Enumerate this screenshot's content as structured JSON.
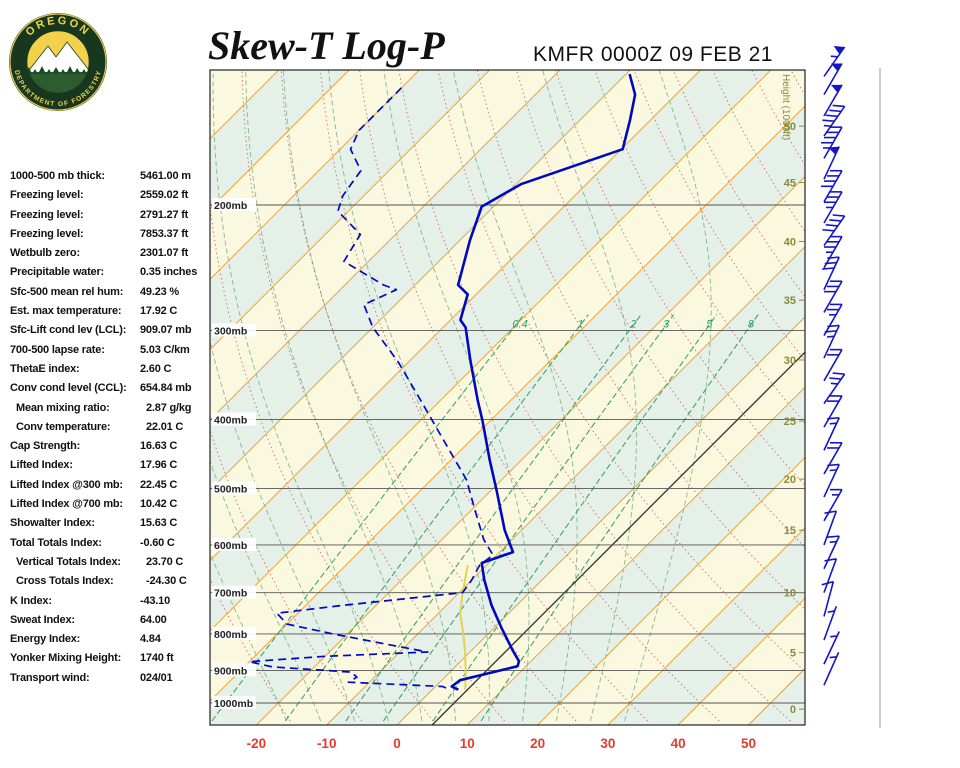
{
  "header": {
    "title": "Skew-T Log-P",
    "station_line": "KMFR 0000Z 09 FEB 21"
  },
  "logo": {
    "top_text": "OREGON",
    "bottom_text": "DEPARTMENT OF FORESTRY"
  },
  "colors": {
    "band_cream": "#FBF8E0",
    "band_mint": "#E5F0E9",
    "isotherm_orange": "#EDA338",
    "dry_red": "#C05050",
    "moist_green": "#6FAF80",
    "mixing_green": "#2E9E60",
    "profile_blue": "#0008C0",
    "parcel_yellow": "#E2D355",
    "barb_blue": "#1515C8",
    "height_olive": "#8A8A3C",
    "axis_red": "#E23B2E",
    "reference_black": "#333333",
    "pressure_line_gray": "#555555"
  },
  "stats": [
    {
      "label": "1000-500 mb thick:",
      "value": "5461.00 m",
      "indent": false
    },
    {
      "label": "Freezing level:",
      "value": "2559.02 ft",
      "indent": false
    },
    {
      "label": "Freezing level:",
      "value": "2791.27 ft",
      "indent": false
    },
    {
      "label": "Freezing level:",
      "value": "7853.37 ft",
      "indent": false
    },
    {
      "label": "Wetbulb zero:",
      "value": "2301.07 ft",
      "indent": false
    },
    {
      "label": "Precipitable water:",
      "value": "0.35 inches",
      "indent": false
    },
    {
      "label": "Sfc-500 mean rel hum:",
      "value": "49.23 %",
      "indent": false
    },
    {
      "label": "Est. max temperature:",
      "value": "17.92 C",
      "indent": false
    },
    {
      "label": "Sfc-Lift cond lev (LCL):",
      "value": "909.07 mb",
      "indent": false
    },
    {
      "label": "700-500 lapse rate:",
      "value": "5.03 C/km",
      "indent": false
    },
    {
      "label": "ThetaE index:",
      "value": "2.60 C",
      "indent": false
    },
    {
      "label": "Conv cond level (CCL):",
      "value": "654.84 mb",
      "indent": false
    },
    {
      "label": "Mean mixing ratio:",
      "value": "2.87 g/kg",
      "indent": true
    },
    {
      "label": "Conv temperature:",
      "value": "22.01 C",
      "indent": true
    },
    {
      "label": "Cap Strength:",
      "value": "16.63 C",
      "indent": false
    },
    {
      "label": "Lifted Index:",
      "value": "17.96 C",
      "indent": false
    },
    {
      "label": "Lifted Index @300 mb:",
      "value": "22.45 C",
      "indent": false
    },
    {
      "label": "Lifted Index @700 mb:",
      "value": "10.42 C",
      "indent": false
    },
    {
      "label": "Showalter Index:",
      "value": "15.63 C",
      "indent": false
    },
    {
      "label": "Total Totals Index:",
      "value": "-0.60 C",
      "indent": false
    },
    {
      "label": "Vertical Totals Index:",
      "value": "23.70 C",
      "indent": true
    },
    {
      "label": "Cross Totals Index:",
      "value": "-24.30 C",
      "indent": true
    },
    {
      "label": "K Index:",
      "value": "-43.10",
      "indent": false
    },
    {
      "label": "Sweat Index:",
      "value": "64.00",
      "indent": false
    },
    {
      "label": "Energy Index:",
      "value": "4.84",
      "indent": false
    },
    {
      "label": "Yonker Mixing Height:",
      "value": "1740 ft",
      "indent": false
    },
    {
      "label": "Transport wind:",
      "value": "024/01",
      "indent": false
    }
  ],
  "chart_data": {
    "type": "skewt-log-p",
    "title": "Skew-T Log-P",
    "station": "KMFR",
    "valid": "0000Z 09 FEB 21",
    "pressure_ticks_mb": [
      200,
      300,
      400,
      500,
      600,
      700,
      800,
      900,
      1000
    ],
    "temp_ticks_c": [
      -20,
      -10,
      0,
      10,
      20,
      30,
      40,
      50
    ],
    "isotherms_c": [
      -120,
      -110,
      -100,
      -90,
      -80,
      -70,
      -60,
      -50,
      -40,
      -30,
      -20,
      -10,
      0,
      10,
      20,
      30,
      40,
      50
    ],
    "reference_isotherm_c": 5,
    "dry_adiabats_c": [
      -20,
      -10,
      0,
      10,
      20,
      30,
      40,
      50,
      60,
      70,
      80,
      90,
      100,
      110,
      120,
      130,
      140,
      150,
      160
    ],
    "moist_adiabats_c": [
      -20,
      -15,
      -10,
      -5,
      0,
      5,
      10,
      15,
      20,
      25,
      30
    ],
    "mixing_ratio_lines_gkg": [
      0.4,
      1,
      2,
      3,
      5,
      8
    ],
    "height_axis_label": "Height (1000ft)",
    "height_labels_kft": [
      {
        "label": "50",
        "p": 155
      },
      {
        "label": "45",
        "p": 186
      },
      {
        "label": "40",
        "p": 225
      },
      {
        "label": "35",
        "p": 272
      },
      {
        "label": "30",
        "p": 330
      },
      {
        "label": "25",
        "p": 402
      },
      {
        "label": "20",
        "p": 485
      },
      {
        "label": "15",
        "p": 572
      },
      {
        "label": "10",
        "p": 700
      },
      {
        "label": "5",
        "p": 850
      },
      {
        "label": "0",
        "p": 1020
      }
    ],
    "temperature_profile": [
      {
        "p": 131,
        "t": -59.5
      },
      {
        "p": 140,
        "t": -55.8
      },
      {
        "p": 152,
        "t": -52.9
      },
      {
        "p": 167,
        "t": -49.8
      },
      {
        "p": 187,
        "t": -59.3
      },
      {
        "p": 201,
        "t": -61.7
      },
      {
        "p": 224,
        "t": -58.6
      },
      {
        "p": 259,
        "t": -53.9
      },
      {
        "p": 267,
        "t": -51.2
      },
      {
        "p": 290,
        "t": -48.6
      },
      {
        "p": 297,
        "t": -46.8
      },
      {
        "p": 330,
        "t": -41.5
      },
      {
        "p": 376,
        "t": -34.7
      },
      {
        "p": 401,
        "t": -31.2
      },
      {
        "p": 456,
        "t": -24.5
      },
      {
        "p": 503,
        "t": -19.2
      },
      {
        "p": 572,
        "t": -12.4
      },
      {
        "p": 614,
        "t": -8.1
      },
      {
        "p": 636,
        "t": -11.0
      },
      {
        "p": 672,
        "t": -8.2
      },
      {
        "p": 729,
        "t": -3.6
      },
      {
        "p": 785,
        "t": 1.1
      },
      {
        "p": 843,
        "t": 5.8
      },
      {
        "p": 874,
        "t": 8.3
      },
      {
        "p": 888,
        "t": 8.8
      },
      {
        "p": 929,
        "t": 2.6
      },
      {
        "p": 948,
        "t": 2.3
      },
      {
        "p": 958,
        "t": 3.7
      }
    ],
    "dewpoint_profile": [
      {
        "p": 137,
        "t": -90
      },
      {
        "p": 157,
        "t": -90
      },
      {
        "p": 167,
        "t": -88.5
      },
      {
        "p": 179,
        "t": -84
      },
      {
        "p": 194,
        "t": -83
      },
      {
        "p": 204,
        "t": -81.5
      },
      {
        "p": 220,
        "t": -75
      },
      {
        "p": 240,
        "t": -73.5
      },
      {
        "p": 259,
        "t": -64.5
      },
      {
        "p": 263,
        "t": -62
      },
      {
        "p": 276,
        "t": -64.5
      },
      {
        "p": 297,
        "t": -60
      },
      {
        "p": 332,
        "t": -51.5
      },
      {
        "p": 375,
        "t": -43
      },
      {
        "p": 427,
        "t": -34
      },
      {
        "p": 486,
        "t": -25
      },
      {
        "p": 536,
        "t": -19.5
      },
      {
        "p": 590,
        "t": -14
      },
      {
        "p": 620,
        "t": -10.5
      },
      {
        "p": 640,
        "t": -11
      },
      {
        "p": 672,
        "t": -10
      },
      {
        "p": 700,
        "t": -9.5
      },
      {
        "p": 730,
        "t": -25
      },
      {
        "p": 748,
        "t": -33
      },
      {
        "p": 775,
        "t": -30
      },
      {
        "p": 800,
        "t": -22
      },
      {
        "p": 830,
        "t": -12
      },
      {
        "p": 848,
        "t": -6
      },
      {
        "p": 860,
        "t": -20
      },
      {
        "p": 875,
        "t": -30
      },
      {
        "p": 890,
        "t": -26
      },
      {
        "p": 905,
        "t": -14
      },
      {
        "p": 920,
        "t": -12.5
      },
      {
        "p": 935,
        "t": -13
      },
      {
        "p": 948,
        "t": 1
      },
      {
        "p": 958,
        "t": 2.5
      }
    ],
    "parcel_profile": [
      {
        "p": 958,
        "t": 4.7
      },
      {
        "p": 900,
        "t": 2.0
      },
      {
        "p": 850,
        "t": -0.6
      },
      {
        "p": 800,
        "t": -3.5
      },
      {
        "p": 750,
        "t": -6.8
      },
      {
        "p": 700,
        "t": -9.5
      },
      {
        "p": 640,
        "t": -12.7
      }
    ],
    "wind_barbs": [
      {
        "p": 132,
        "dir": 35,
        "spd": 55
      },
      {
        "p": 140,
        "dir": 30,
        "spd": 50
      },
      {
        "p": 150,
        "dir": 30,
        "spd": 50
      },
      {
        "p": 160,
        "dir": 35,
        "spd": 45
      },
      {
        "p": 172,
        "dir": 30,
        "spd": 45
      },
      {
        "p": 184,
        "dir": 25,
        "spd": 50
      },
      {
        "p": 198,
        "dir": 30,
        "spd": 40
      },
      {
        "p": 212,
        "dir": 30,
        "spd": 35
      },
      {
        "p": 228,
        "dir": 35,
        "spd": 40
      },
      {
        "p": 245,
        "dir": 30,
        "spd": 35
      },
      {
        "p": 263,
        "dir": 25,
        "spd": 30
      },
      {
        "p": 283,
        "dir": 30,
        "spd": 30
      },
      {
        "p": 305,
        "dir": 30,
        "spd": 25
      },
      {
        "p": 328,
        "dir": 25,
        "spd": 25
      },
      {
        "p": 353,
        "dir": 30,
        "spd": 20
      },
      {
        "p": 380,
        "dir": 35,
        "spd": 25
      },
      {
        "p": 410,
        "dir": 30,
        "spd": 20
      },
      {
        "p": 442,
        "dir": 25,
        "spd": 15
      },
      {
        "p": 477,
        "dir": 30,
        "spd": 20
      },
      {
        "p": 514,
        "dir": 25,
        "spd": 15
      },
      {
        "p": 555,
        "dir": 30,
        "spd": 15
      },
      {
        "p": 600,
        "dir": 20,
        "spd": 10
      },
      {
        "p": 648,
        "dir": 25,
        "spd": 15
      },
      {
        "p": 700,
        "dir": 20,
        "spd": 10
      },
      {
        "p": 756,
        "dir": 15,
        "spd": 10
      },
      {
        "p": 816,
        "dir": 20,
        "spd": 5
      },
      {
        "p": 882,
        "dir": 25,
        "spd": 5
      },
      {
        "p": 944,
        "dir": 24,
        "spd": 5
      }
    ]
  }
}
